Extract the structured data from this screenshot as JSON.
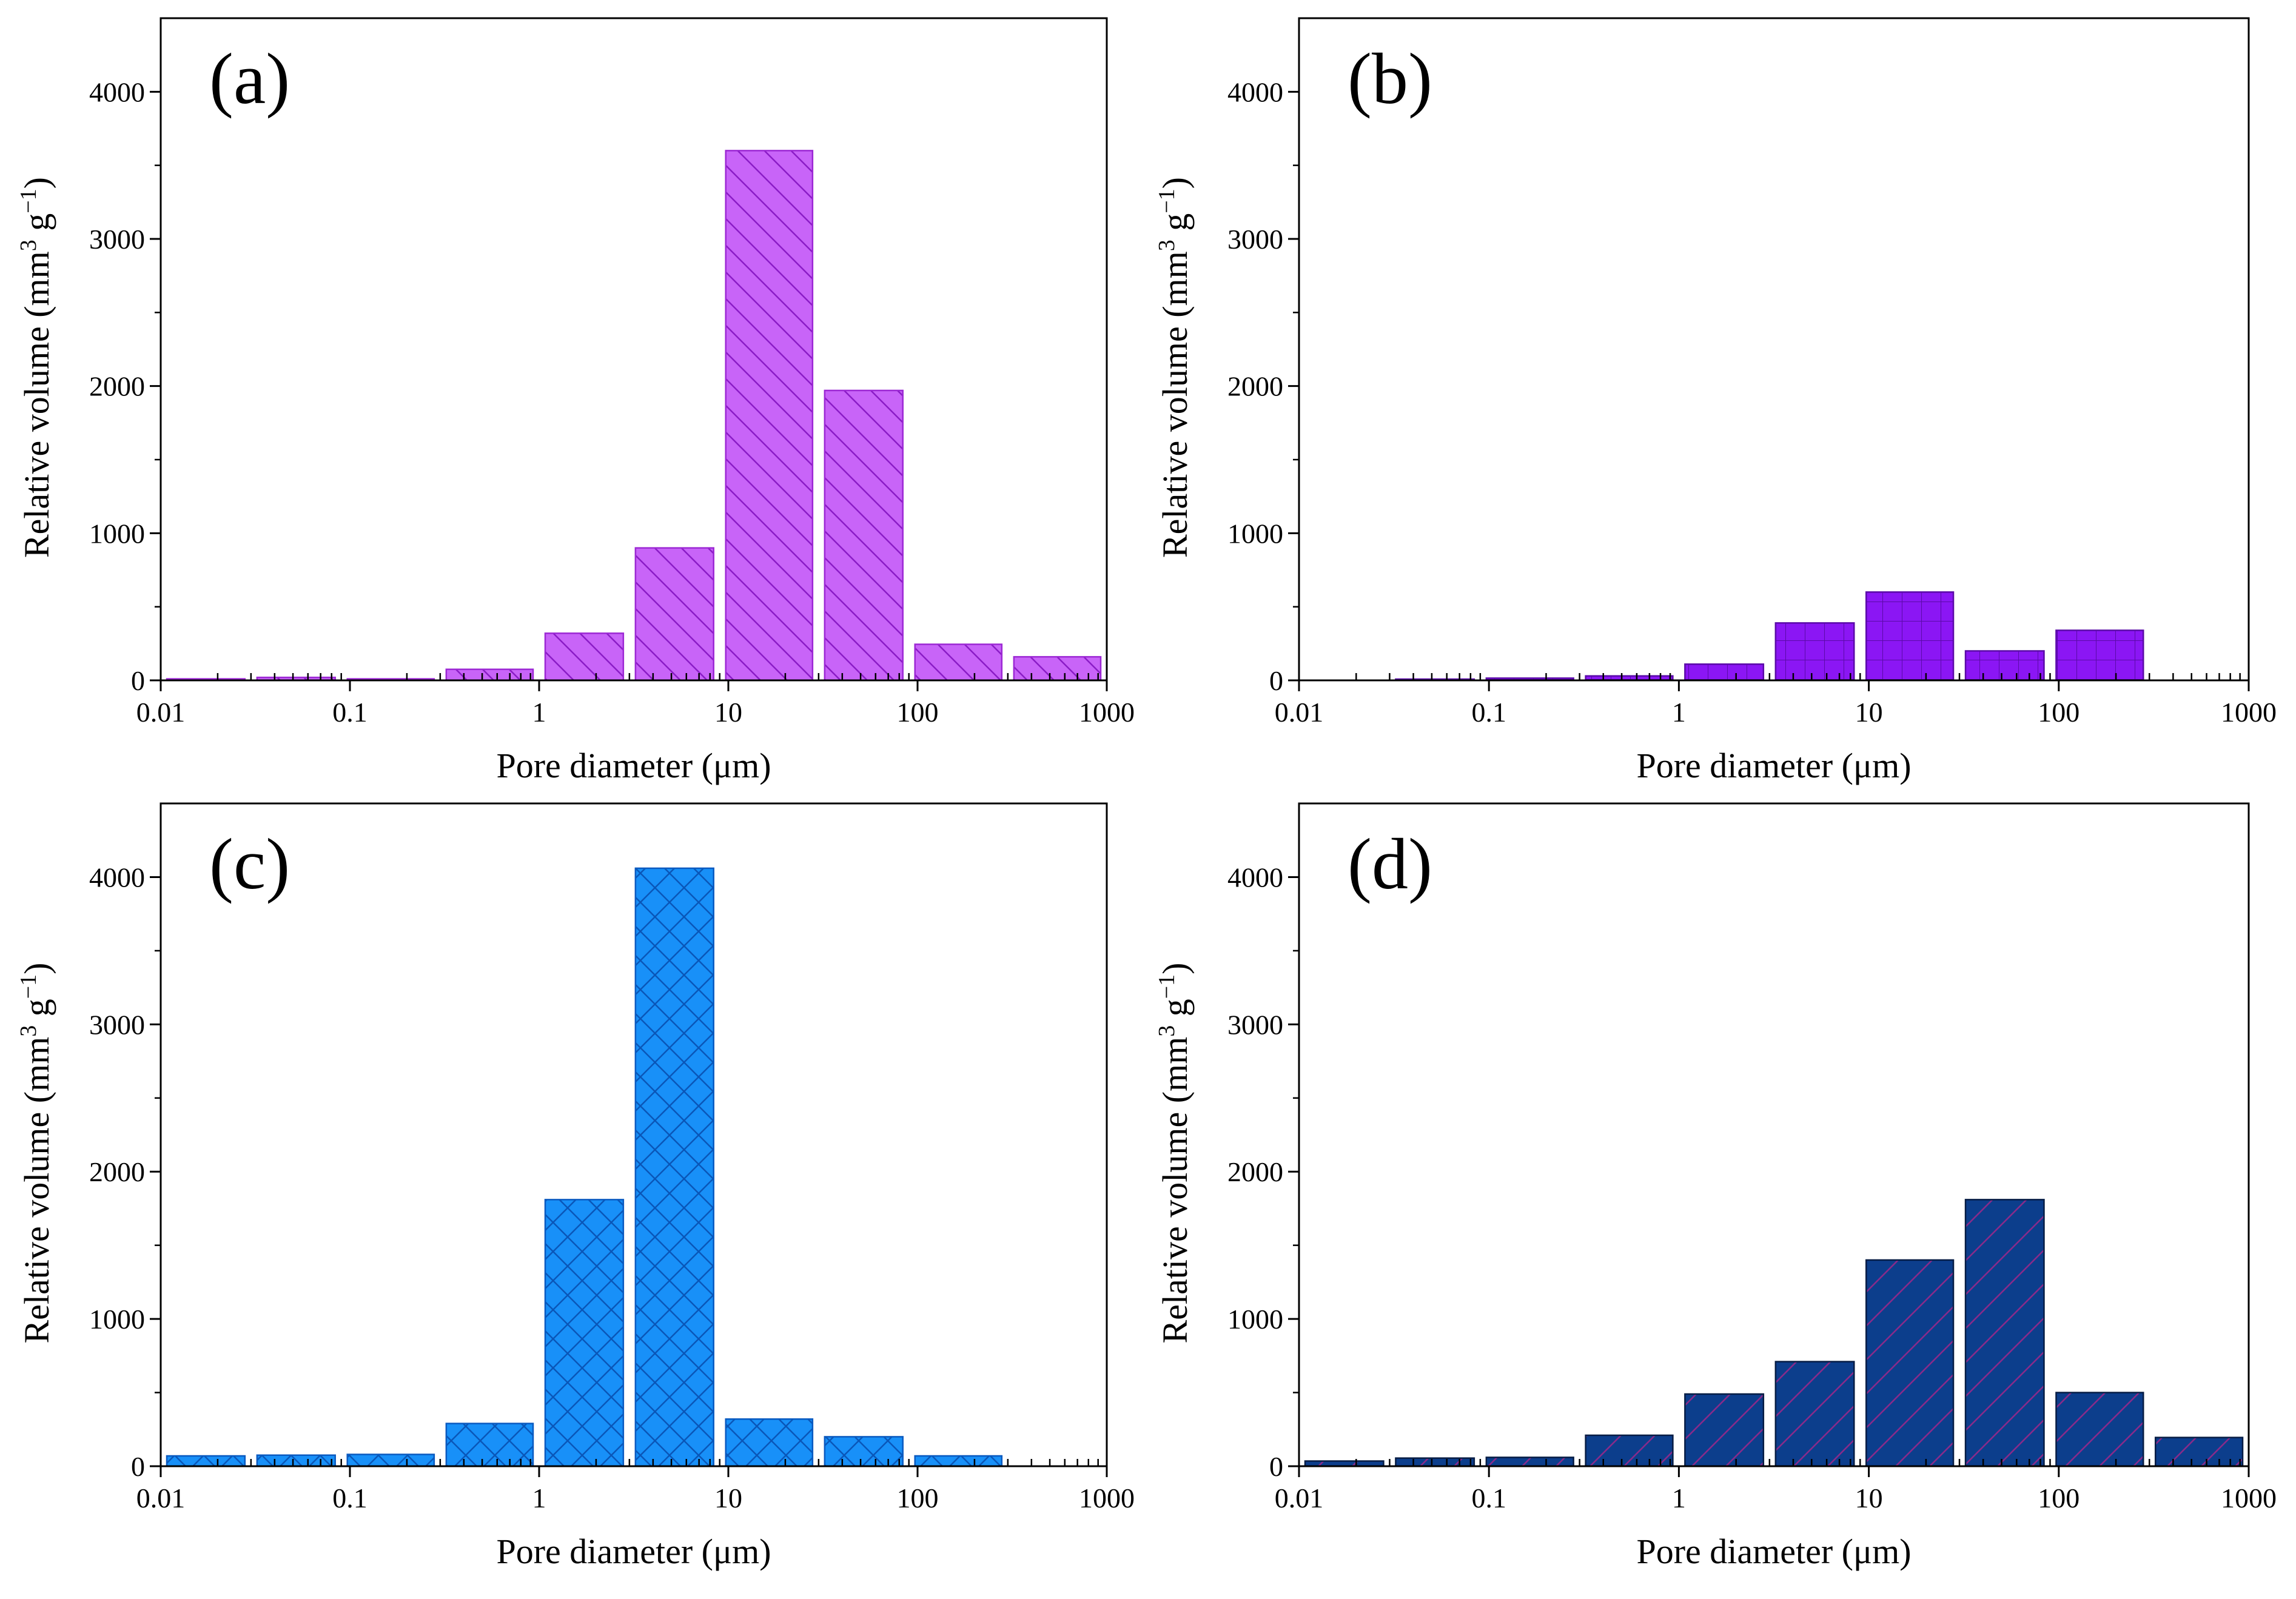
{
  "figure": {
    "bin_edges": [
      0.01,
      0.03,
      0.09,
      0.3,
      1,
      3,
      9,
      30,
      90,
      300,
      1000
    ]
  },
  "chart_data": [
    {
      "type": "bar",
      "panel": "(a)",
      "xlabel": "Pore diameter (μm)",
      "ylabel": "Relative volume (mm3 g−1)",
      "ylabel_main": "Relative volume (mm",
      "ylabel_sup1": "3",
      "ylabel_mid": " g",
      "ylabel_sup2": "−1",
      "ylabel_end": ")",
      "xscale": "log",
      "xlim": [
        0.01,
        1000
      ],
      "ylim": [
        0,
        4500
      ],
      "xticks": [
        "0.01",
        "0.1",
        "1",
        "10",
        "100",
        "1000"
      ],
      "yticks": [
        "0",
        "1000",
        "2000",
        "3000",
        "4000"
      ],
      "bins": [
        [
          0.01,
          0.03
        ],
        [
          0.03,
          0.09
        ],
        [
          0.09,
          0.3
        ],
        [
          0.3,
          1
        ],
        [
          1,
          3
        ],
        [
          3,
          9
        ],
        [
          9,
          30
        ],
        [
          30,
          90
        ],
        [
          90,
          300
        ],
        [
          300,
          1000
        ]
      ],
      "values": [
        10,
        20,
        10,
        75,
        320,
        900,
        3600,
        1970,
        245,
        160
      ],
      "fill": "#c864f8",
      "stroke": "#9c28d4",
      "pattern": "back-diagonal"
    },
    {
      "type": "bar",
      "panel": "(b)",
      "xlabel": "Pore diameter (μm)",
      "ylabel": "Relative volume (mm3 g−1)",
      "ylabel_main": "Relative volume (mm",
      "ylabel_sup1": "3",
      "ylabel_mid": " g",
      "ylabel_sup2": "−1",
      "ylabel_end": ")",
      "xscale": "log",
      "xlim": [
        0.01,
        1000
      ],
      "ylim": [
        0,
        4500
      ],
      "xticks": [
        "0.01",
        "0.1",
        "1",
        "10",
        "100",
        "1000"
      ],
      "yticks": [
        "0",
        "1000",
        "2000",
        "3000",
        "4000"
      ],
      "bins": [
        [
          0.01,
          0.03
        ],
        [
          0.03,
          0.09
        ],
        [
          0.09,
          0.3
        ],
        [
          0.3,
          1
        ],
        [
          1,
          3
        ],
        [
          3,
          9
        ],
        [
          9,
          30
        ],
        [
          30,
          90
        ],
        [
          90,
          300
        ],
        [
          300,
          1000
        ]
      ],
      "values": [
        0,
        5,
        15,
        30,
        110,
        390,
        600,
        200,
        340,
        0
      ],
      "fill": "#8b16f4",
      "stroke": "#5a0aa8",
      "pattern": "grid"
    },
    {
      "type": "bar",
      "panel": "(c)",
      "xlabel": "Pore diameter (μm)",
      "ylabel": "Relative volume (mm3 g−1)",
      "ylabel_main": "Relative volume (mm",
      "ylabel_sup1": "3",
      "ylabel_mid": " g",
      "ylabel_sup2": "−1",
      "ylabel_end": ")",
      "xscale": "log",
      "xlim": [
        0.01,
        1000
      ],
      "ylim": [
        0,
        4500
      ],
      "xticks": [
        "0.01",
        "0.1",
        "1",
        "10",
        "100",
        "1000"
      ],
      "yticks": [
        "0",
        "1000",
        "2000",
        "3000",
        "4000"
      ],
      "bins": [
        [
          0.01,
          0.03
        ],
        [
          0.03,
          0.09
        ],
        [
          0.09,
          0.3
        ],
        [
          0.3,
          1
        ],
        [
          1,
          3
        ],
        [
          3,
          9
        ],
        [
          9,
          30
        ],
        [
          30,
          90
        ],
        [
          90,
          300
        ],
        [
          300,
          1000
        ]
      ],
      "values": [
        70,
        75,
        80,
        290,
        1810,
        4060,
        320,
        200,
        70,
        0
      ],
      "fill": "#1890f8",
      "stroke": "#0a5ac0",
      "pattern": "crosshatch"
    },
    {
      "type": "bar",
      "panel": "(d)",
      "xlabel": "Pore diameter (μm)",
      "ylabel": "Relative volume (mm3 g−1)",
      "ylabel_main": "Relative volume (mm",
      "ylabel_sup1": "3",
      "ylabel_mid": " g",
      "ylabel_sup2": "−1",
      "ylabel_end": ")",
      "xscale": "log",
      "xlim": [
        0.01,
        1000
      ],
      "ylim": [
        0,
        4500
      ],
      "xticks": [
        "0.01",
        "0.1",
        "1",
        "10",
        "100",
        "1000"
      ],
      "yticks": [
        "0",
        "1000",
        "2000",
        "3000",
        "4000"
      ],
      "bins": [
        [
          0.01,
          0.03
        ],
        [
          0.03,
          0.09
        ],
        [
          0.09,
          0.3
        ],
        [
          0.3,
          1
        ],
        [
          1,
          3
        ],
        [
          3,
          9
        ],
        [
          9,
          30
        ],
        [
          30,
          90
        ],
        [
          90,
          300
        ],
        [
          300,
          1000
        ]
      ],
      "values": [
        35,
        55,
        60,
        210,
        490,
        710,
        1400,
        1810,
        500,
        195
      ],
      "fill": "#0c3e8c",
      "stroke": "#061c44",
      "pattern": "forward-diagonal"
    }
  ]
}
